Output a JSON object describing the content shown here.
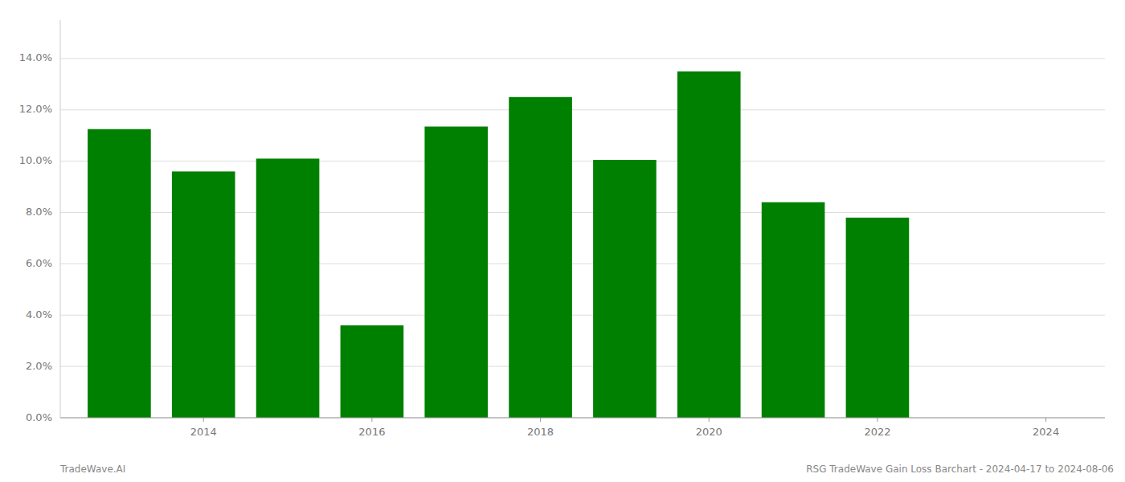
{
  "chart_data": {
    "type": "bar",
    "x": [
      2013,
      2014,
      2015,
      2016,
      2017,
      2018,
      2019,
      2020,
      2021,
      2022
    ],
    "values": [
      0.1125,
      0.096,
      0.101,
      0.036,
      0.1135,
      0.125,
      0.1005,
      0.135,
      0.084,
      0.078
    ],
    "color": "#008000",
    "xlim": [
      2012.3,
      2024.7
    ],
    "xticks": [
      2014,
      2016,
      2018,
      2020,
      2022,
      2024
    ],
    "ylim": [
      0,
      0.155
    ],
    "yticks": [
      {
        "value": 0.0,
        "label": "0.0%"
      },
      {
        "value": 0.02,
        "label": "2.0%"
      },
      {
        "value": 0.04,
        "label": "4.0%"
      },
      {
        "value": 0.06,
        "label": "6.0%"
      },
      {
        "value": 0.08,
        "label": "8.0%"
      },
      {
        "value": 0.1,
        "label": "10.0%"
      },
      {
        "value": 0.12,
        "label": "12.0%"
      },
      {
        "value": 0.14,
        "label": "14.0%"
      }
    ],
    "grid": true,
    "annotations": [
      "TradeWave.AI",
      "RSG TradeWave Gain Loss Barchart - 2024-04-17 to 2024-08-06"
    ]
  }
}
